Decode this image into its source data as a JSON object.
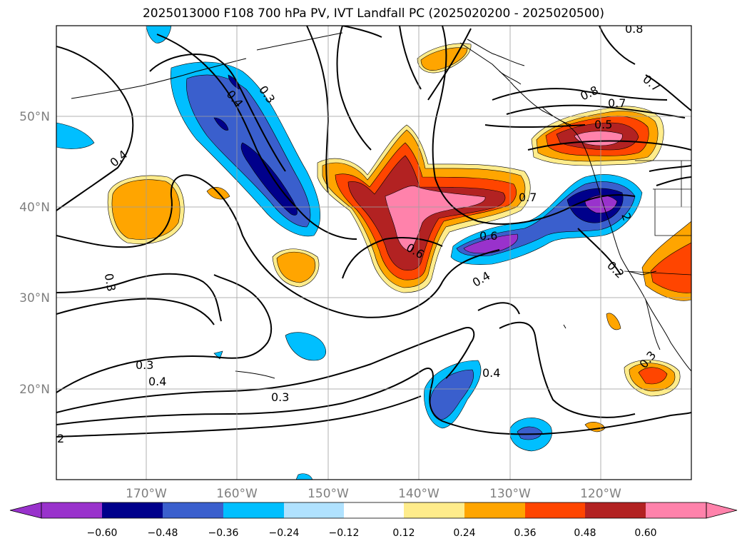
{
  "title": "2025013000 F108 700 hPa PV, IVT Landfall PC (2025020200 - 2025020500)",
  "lon_labels": [
    "170°W",
    "160°W",
    "150°W",
    "140°W",
    "130°W",
    "120°W"
  ],
  "lat_labels": [
    "50°N",
    "40°N",
    "30°N",
    "20°N"
  ],
  "contour_labels": [
    "0.4",
    "0.3",
    "0.4",
    "0.3",
    "0.3",
    "0.4",
    "0.3",
    "2",
    "0.6",
    "0.7",
    "0.6",
    "0.4",
    "0.4",
    "0.8",
    "0.7",
    "0.7",
    "0.5",
    "2",
    "0.2",
    "0.3",
    "0.8"
  ],
  "colorbar": {
    "colors": [
      "#9932cc",
      "#00008b",
      "#3a5fcd",
      "#00bfff",
      "#b0e2ff",
      "#ffffff",
      "#ffec8b",
      "#ffa500",
      "#ff4500",
      "#b22222",
      "#ff82ab"
    ],
    "ticks": [
      "−0.60",
      "−0.48",
      "−0.36",
      "−0.24",
      "−0.12",
      "0.12",
      "0.24",
      "0.36",
      "0.48",
      "0.60"
    ]
  }
}
